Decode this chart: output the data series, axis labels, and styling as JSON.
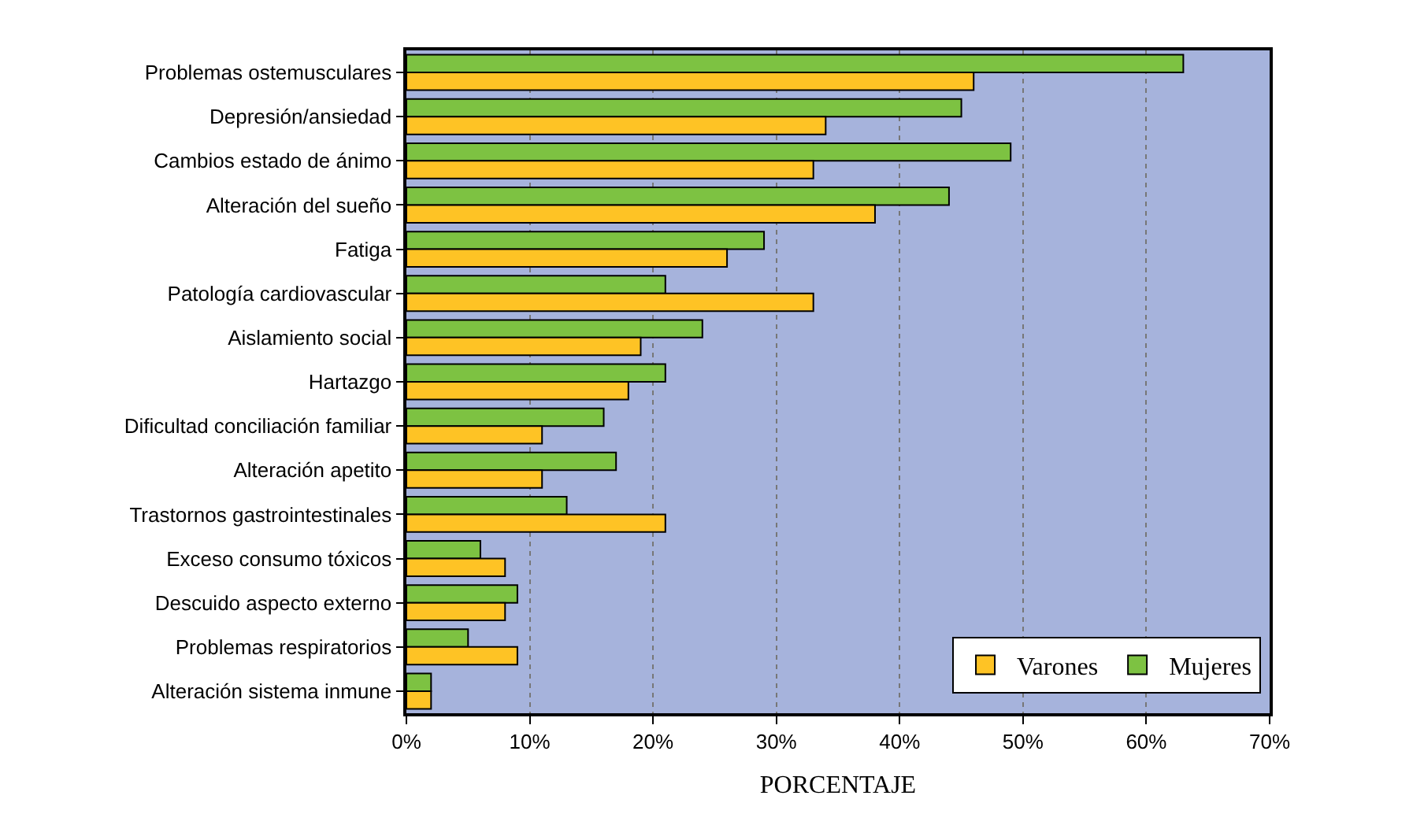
{
  "chart_data": {
    "type": "bar",
    "orientation": "horizontal",
    "xlabel": "PORCENTAJE",
    "categories": [
      "Problemas ostemusculares",
      "Depresión/ansiedad",
      "Cambios estado de ánimo",
      "Alteración del sueño",
      "Fatiga",
      "Patología cardiovascular",
      "Aislamiento social",
      "Hartazgo",
      "Dificultad conciliación familiar",
      "Alteración apetito",
      "Trastornos gastrointestinales",
      "Exceso consumo tóxicos",
      "Descuido aspecto externo",
      "Problemas respiratorios",
      "Alteración sistema inmune"
    ],
    "series": [
      {
        "name": "Mujeres",
        "color": "#7dc242",
        "values": [
          63,
          45,
          49,
          44,
          29,
          21,
          24,
          21,
          16,
          17,
          13,
          6,
          9,
          5,
          2
        ]
      },
      {
        "name": "Varones",
        "color": "#fec325",
        "values": [
          46,
          34,
          33,
          38,
          26,
          33,
          19,
          18,
          11,
          11,
          21,
          8,
          8,
          9,
          2
        ]
      }
    ],
    "xlim": [
      0,
      70
    ],
    "xticks": [
      {
        "value": 0,
        "label": "0%"
      },
      {
        "value": 10,
        "label": "10%"
      },
      {
        "value": 20,
        "label": "20%"
      },
      {
        "value": 30,
        "label": "30%"
      },
      {
        "value": 40,
        "label": "40%"
      },
      {
        "value": 50,
        "label": "50%"
      },
      {
        "value": 60,
        "label": "60%"
      },
      {
        "value": 70,
        "label": "70%"
      }
    ],
    "grid": "x",
    "legend": "bottom right"
  }
}
